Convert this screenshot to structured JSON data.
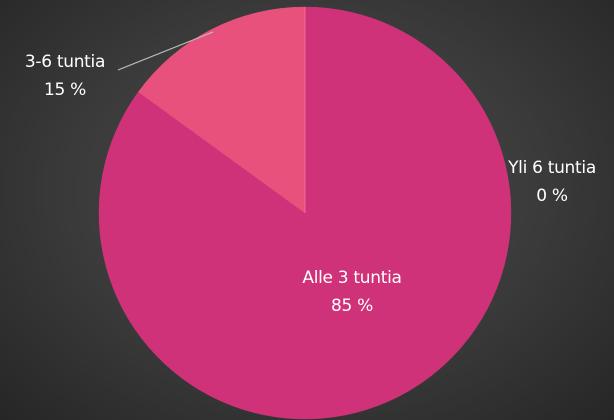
{
  "chart_data": {
    "type": "pie",
    "categories": [
      "Alle 3 tuntia",
      "3-6 tuntia",
      "Yli 6 tuntia"
    ],
    "values": [
      85,
      15,
      0
    ],
    "value_labels": [
      "85 %",
      "15 %",
      "0 %"
    ],
    "colors": [
      "#cf3279",
      "#e8517c",
      "#f27a9c"
    ]
  }
}
